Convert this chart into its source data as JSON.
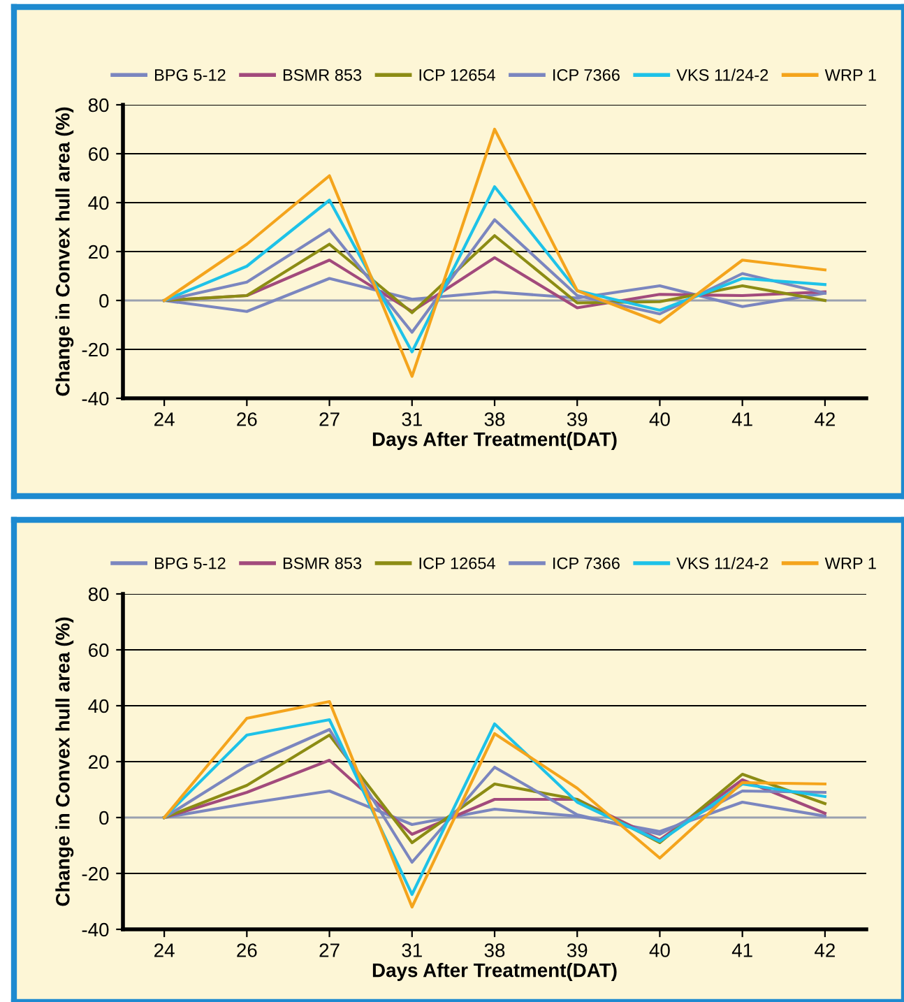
{
  "chart_data": [
    {
      "type": "line",
      "categories": [
        "24",
        "26",
        "27",
        "31",
        "38",
        "39",
        "40",
        "41",
        "42"
      ],
      "xlabel": "Days After Treatment(DAT)",
      "ylabel": "Change in Convex hull area (%)",
      "ylim": [
        -40,
        80
      ],
      "yticks": [
        -40,
        -20,
        0,
        20,
        40,
        60,
        80
      ],
      "grid": "y",
      "legend": "top",
      "marker": "none",
      "line_style": "solid",
      "series": [
        {
          "name": "BPG 5-12",
          "color": "#7b86bf",
          "values": [
            0,
            -4.5,
            9,
            0.5,
            3.5,
            1,
            6,
            -2.5,
            3
          ]
        },
        {
          "name": "BSMR 853",
          "color": "#a24a7c",
          "values": [
            0,
            2,
            16.5,
            -4.5,
            17.5,
            -3,
            2.5,
            2,
            3.5
          ]
        },
        {
          "name": "ICP 12654",
          "color": "#8c8c14",
          "values": [
            0,
            2,
            23,
            -5,
            26.5,
            -1,
            -0.5,
            6,
            0
          ]
        },
        {
          "name": "ICP 7366",
          "color": "#7b86bf",
          "values": [
            0,
            7.5,
            29,
            -13,
            33,
            2,
            -5.5,
            11,
            3
          ]
        },
        {
          "name": "VKS 11/24-2",
          "color": "#1ec2e8",
          "values": [
            0,
            14,
            41,
            -21,
            46.5,
            4,
            -4,
            9,
            6.5
          ]
        },
        {
          "name": "WRP 1",
          "color": "#f4a41c",
          "values": [
            0,
            23,
            51,
            -31,
            70,
            4,
            -9,
            16.5,
            12.5
          ]
        }
      ]
    },
    {
      "type": "line",
      "categories": [
        "24",
        "26",
        "27",
        "31",
        "38",
        "39",
        "40",
        "41",
        "42"
      ],
      "xlabel": "Days After Treatment(DAT)",
      "ylabel": "Change in Convex hull area (%)",
      "ylim": [
        -40,
        80
      ],
      "yticks": [
        -40,
        -20,
        0,
        20,
        40,
        60,
        80
      ],
      "grid": "y",
      "legend": "top",
      "marker": "none",
      "line_style": "solid",
      "series": [
        {
          "name": "BPG 5-12",
          "color": "#7b86bf",
          "values": [
            0,
            5,
            9.5,
            -2.5,
            3,
            0.5,
            -5,
            5.5,
            0.5
          ]
        },
        {
          "name": "BSMR 853",
          "color": "#a24a7c",
          "values": [
            0,
            9,
            20.5,
            -6,
            6.5,
            6.5,
            -8,
            13.5,
            1.5
          ]
        },
        {
          "name": "ICP 12654",
          "color": "#8c8c14",
          "values": [
            0,
            11.5,
            29.5,
            -9,
            12,
            6.5,
            -9,
            15.5,
            5
          ]
        },
        {
          "name": "ICP 7366",
          "color": "#7b86bf",
          "values": [
            0,
            18.5,
            31.5,
            -16,
            18,
            1,
            -6,
            9.5,
            9
          ]
        },
        {
          "name": "VKS 11/24-2",
          "color": "#1ec2e8",
          "values": [
            0,
            29.5,
            35,
            -27.5,
            33.5,
            5.5,
            -8.5,
            12,
            7.5
          ]
        },
        {
          "name": "WRP 1",
          "color": "#f4a41c",
          "values": [
            0,
            35.5,
            41.5,
            -32,
            30,
            10.5,
            -14.5,
            12.5,
            12
          ]
        }
      ]
    }
  ]
}
